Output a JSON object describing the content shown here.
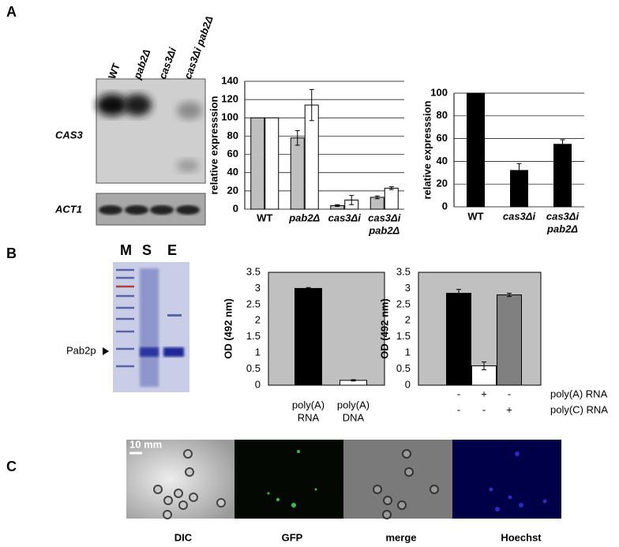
{
  "panels": {
    "a": "A",
    "b": "B",
    "c": "C"
  },
  "blot": {
    "lanes": [
      "WT",
      "pab2Δ",
      "cas3Δi",
      "cas3Δi pab2Δ"
    ],
    "rows": [
      "CAS3",
      "ACT1"
    ]
  },
  "gel": {
    "lanes": [
      "M",
      "S",
      "E"
    ],
    "marker": "Pab2p"
  },
  "micrographs": {
    "scale": "10 mm",
    "labels": [
      "DIC",
      "GFP",
      "merge",
      "Hoechst"
    ]
  },
  "chart_data": [
    {
      "type": "bar",
      "ylabel": "relative expresssion",
      "categories": [
        [
          "WT"
        ],
        [
          "pab2Δ"
        ],
        [
          "cas3Δi"
        ],
        [
          "cas3Δi",
          "pab2Δ"
        ]
      ],
      "series": [
        {
          "color": "#bfbfbf",
          "values": [
            100,
            78,
            4,
            13
          ],
          "errors": [
            null,
            8,
            1,
            1.5
          ]
        },
        {
          "color": "#ffffff",
          "values": [
            100,
            114,
            10,
            23
          ],
          "errors": [
            null,
            17,
            5,
            1.5
          ]
        }
      ],
      "ylim": [
        0,
        140
      ],
      "yticks": [
        0,
        20,
        40,
        60,
        80,
        100,
        120,
        140
      ],
      "grid": true
    },
    {
      "type": "bar",
      "ylabel": "relative expresssion",
      "categories": [
        [
          "WT"
        ],
        [
          "cas3Δi"
        ],
        [
          "cas3Δi",
          "pab2Δ"
        ]
      ],
      "series": [
        {
          "color": "#000000",
          "values": [
            100,
            32,
            55
          ],
          "errors": [
            null,
            6,
            4
          ]
        }
      ],
      "ylim": [
        0,
        100
      ],
      "yticks": [
        0,
        20,
        40,
        60,
        80,
        100
      ],
      "grid": true
    },
    {
      "type": "bar",
      "ylabel": "OD (492 nm)",
      "categories": [
        [
          "poly(A)",
          "RNA"
        ],
        [
          "poly(A)",
          "DNA"
        ]
      ],
      "series": [
        {
          "colors": [
            "#000000",
            "#ffffff"
          ],
          "values": [
            3.0,
            0.15
          ],
          "errors": [
            0.03,
            0.02
          ]
        }
      ],
      "ylim": [
        0,
        3.5
      ],
      "yticks": [
        0,
        0.5,
        1,
        1.5,
        2,
        2.5,
        3,
        3.5
      ],
      "grid": false,
      "background": "#c0c0c0"
    },
    {
      "type": "bar",
      "ylabel": "OD (492 nm)",
      "conditions": [
        {
          "label": "poly(A) RNA",
          "values": [
            "-",
            "+",
            "-"
          ]
        },
        {
          "label": "poly(C) RNA",
          "values": [
            "-",
            "-",
            "+"
          ]
        }
      ],
      "series": [
        {
          "colors": [
            "#000000",
            "#ffffff",
            "#808080"
          ],
          "values": [
            2.85,
            0.6,
            2.8
          ],
          "errors": [
            0.12,
            0.12,
            0.05
          ]
        }
      ],
      "ylim": [
        0,
        3.5
      ],
      "yticks": [
        0,
        0.5,
        1,
        1.5,
        2,
        2.5,
        3,
        3.5
      ],
      "grid": false,
      "background": "#c0c0c0"
    }
  ]
}
